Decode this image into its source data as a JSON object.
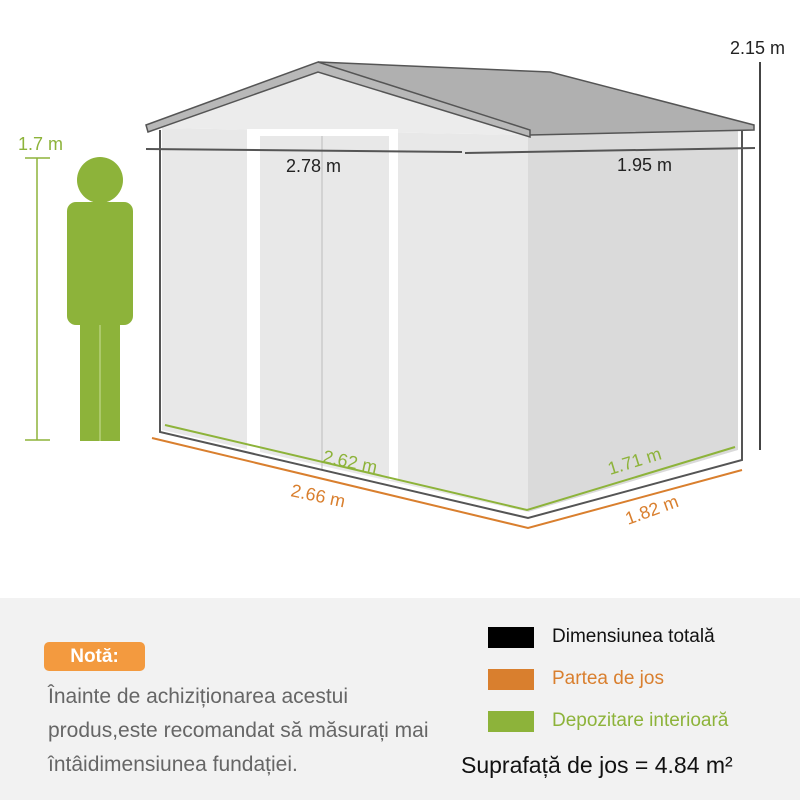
{
  "dimensions": {
    "height_total": "2.15 m",
    "person_height": "1.7 m",
    "front_width_total": "2.78 m",
    "side_depth_total": "1.95 m",
    "front_width_interior": "2.62 m",
    "side_depth_interior": "1.71 m",
    "front_width_base": "2.66 m",
    "side_depth_base": "1.82 m"
  },
  "note": {
    "badge": "Notă:",
    "text": "Înainte de achiziționarea acestui produs,este recomandat să măsurați mai întâidimensiunea fundației."
  },
  "legend": [
    {
      "label": "Dimensiunea totală",
      "color": "#000000"
    },
    {
      "label": "Partea de jos",
      "color": "#d97f2e"
    },
    {
      "label": "Depozitare interioară",
      "color": "#8db33a"
    }
  ],
  "area": "Suprafață de jos = 4.84 m²",
  "colors": {
    "person": "#8db33a",
    "roof": "#b0b0b0",
    "wall": "#e6e6e6"
  }
}
